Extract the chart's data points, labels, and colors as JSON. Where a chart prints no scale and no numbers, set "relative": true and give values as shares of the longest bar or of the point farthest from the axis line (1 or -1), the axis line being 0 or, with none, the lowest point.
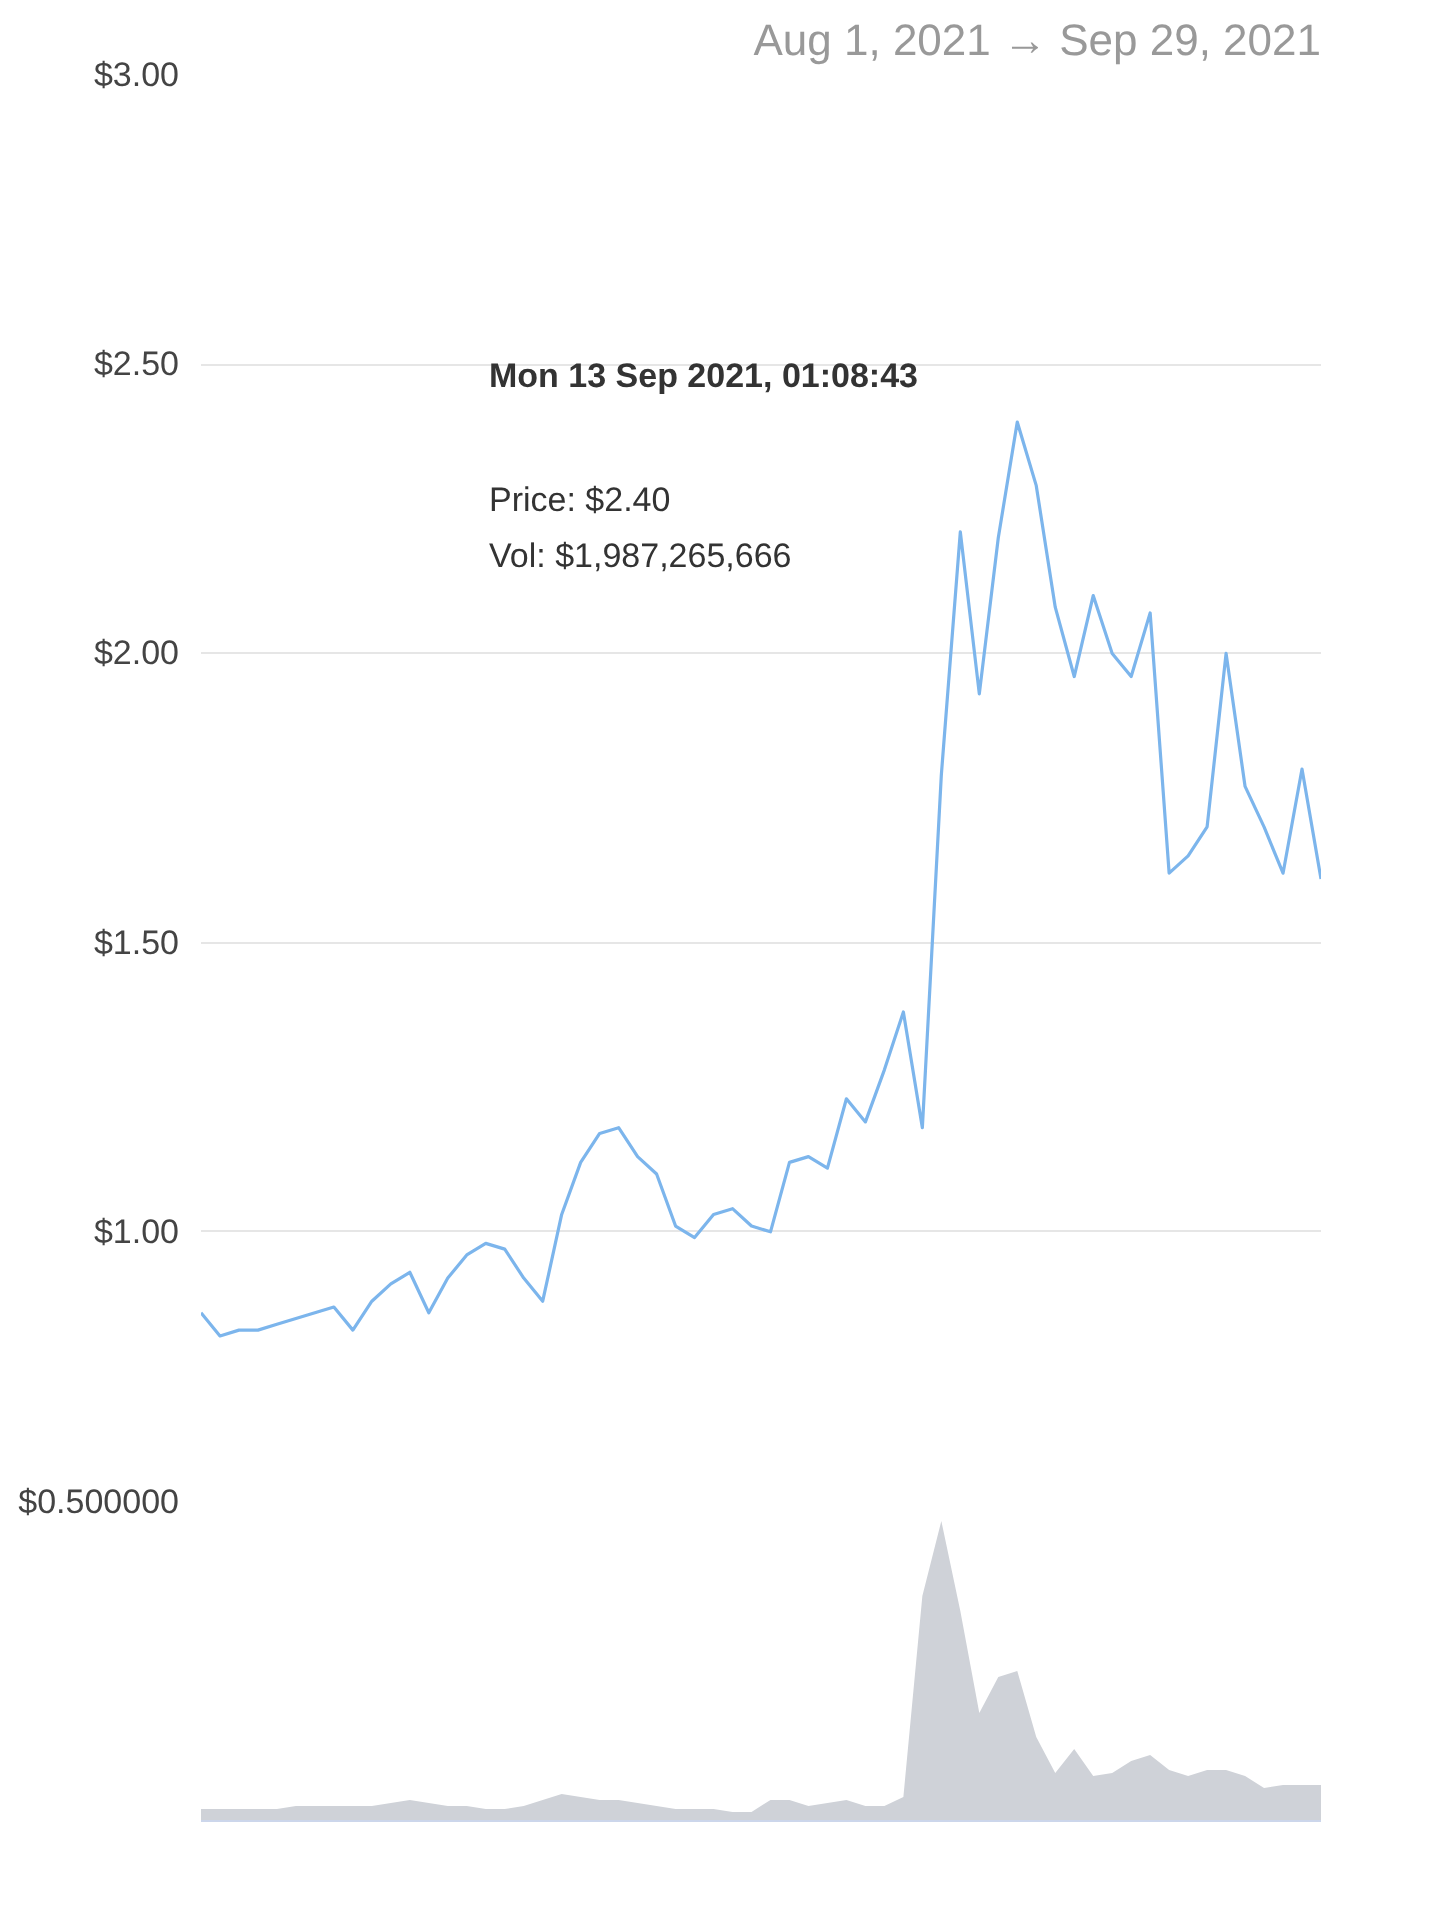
{
  "chart_data": [
    {
      "type": "line",
      "subtitle": "Aug 1, 2021 → Sep 29, 2021",
      "categories": [
        null,
        null,
        null,
        null,
        null,
        null,
        null,
        null,
        null,
        null,
        null,
        null,
        null,
        null,
        null,
        null,
        null,
        null,
        null,
        null,
        null,
        null,
        null,
        null,
        null,
        null,
        null,
        null,
        null,
        null,
        null,
        null,
        null,
        null,
        null,
        null,
        null,
        null,
        null,
        null,
        null,
        null,
        null,
        null,
        null,
        null,
        null,
        null,
        null,
        null,
        null,
        null,
        null,
        null,
        null,
        null,
        null,
        null,
        null,
        null
      ],
      "series": [
        {
          "color": "#7cb5ec",
          "values": [
            0.86,
            0.82,
            0.83,
            0.83,
            0.84,
            0.85,
            0.86,
            0.87,
            0.83,
            0.88,
            0.91,
            0.93,
            0.86,
            0.92,
            0.96,
            0.98,
            0.97,
            0.92,
            0.88,
            1.03,
            1.12,
            1.17,
            1.18,
            1.13,
            1.1,
            1.01,
            0.99,
            1.03,
            1.04,
            1.01,
            1.0,
            1.12,
            1.13,
            1.11,
            1.23,
            1.19,
            1.28,
            1.38,
            1.18,
            1.79,
            2.21,
            1.93,
            2.2,
            2.4,
            2.29,
            2.08,
            1.96,
            2.1,
            2.0,
            1.96,
            2.07,
            1.62,
            1.65,
            1.7,
            2.0,
            1.77,
            1.7,
            1.62,
            1.8,
            1.61
          ]
        }
      ],
      "ylim": [
        0.5,
        3.0
      ],
      "yticks": [
        {
          "value": 0.5,
          "label": "$0.500000"
        },
        {
          "value": 1,
          "label": "$1.00"
        },
        {
          "value": 1.5,
          "label": "$1.50"
        },
        {
          "value": 2,
          "label": "$2.00"
        },
        {
          "value": 2.5,
          "label": "$2.50"
        },
        {
          "value": 3,
          "label": "$3.00"
        }
      ],
      "tick_labels": "y",
      "grid": "y",
      "line_style": "solid",
      "annotations": [
        "Mon 13 Sep 2021, 01:08:43",
        "Price: $2.40",
        "Vol: $1,987,265,666"
      ]
    },
    {
      "type": "area",
      "relative": true,
      "categories": [
        null,
        null,
        null,
        null,
        null,
        null,
        null,
        null,
        null,
        null,
        null,
        null,
        null,
        null,
        null,
        null,
        null,
        null,
        null,
        null,
        null,
        null,
        null,
        null,
        null,
        null,
        null,
        null,
        null,
        null,
        null,
        null,
        null,
        null,
        null,
        null,
        null,
        null,
        null,
        null,
        null,
        null,
        null,
        null,
        null,
        null,
        null,
        null,
        null,
        null,
        null,
        null,
        null,
        null,
        null,
        null,
        null,
        null,
        null,
        null
      ],
      "series": [
        {
          "color": "#cfd2d8",
          "values": [
            0.04,
            0.04,
            0.04,
            0.04,
            0.04,
            0.05,
            0.05,
            0.05,
            0.05,
            0.05,
            0.06,
            0.07,
            0.06,
            0.05,
            0.05,
            0.04,
            0.04,
            0.05,
            0.07,
            0.09,
            0.08,
            0.07,
            0.07,
            0.06,
            0.05,
            0.04,
            0.04,
            0.04,
            0.03,
            0.03,
            0.07,
            0.07,
            0.05,
            0.06,
            0.07,
            0.05,
            0.05,
            0.08,
            0.75,
            1,
            0.7,
            0.36,
            0.48,
            0.5,
            0.28,
            0.16,
            0.24,
            0.15,
            0.16,
            0.2,
            0.22,
            0.17,
            0.15,
            0.17,
            0.17,
            0.15,
            0.11,
            0.12,
            0.12,
            0.12
          ]
        }
      ]
    }
  ]
}
